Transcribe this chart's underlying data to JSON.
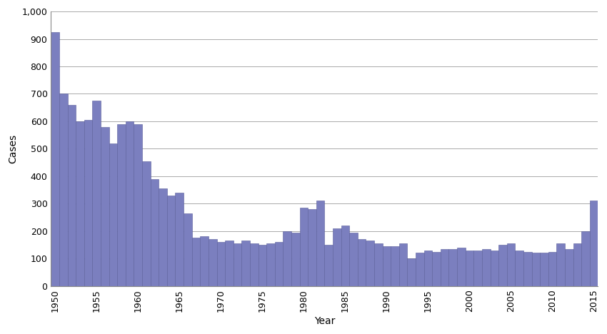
{
  "years": [
    1950,
    1951,
    1952,
    1953,
    1954,
    1955,
    1956,
    1957,
    1958,
    1959,
    1960,
    1961,
    1962,
    1963,
    1964,
    1965,
    1966,
    1967,
    1968,
    1969,
    1970,
    1971,
    1972,
    1973,
    1974,
    1975,
    1976,
    1977,
    1978,
    1979,
    1980,
    1981,
    1982,
    1983,
    1984,
    1985,
    1986,
    1987,
    1988,
    1989,
    1990,
    1991,
    1992,
    1993,
    1994,
    1995,
    1996,
    1997,
    1998,
    1999,
    2000,
    2001,
    2002,
    2003,
    2004,
    2005,
    2006,
    2007,
    2008,
    2009,
    2010,
    2011,
    2012,
    2013,
    2014,
    2015
  ],
  "cases": [
    925,
    700,
    660,
    600,
    605,
    675,
    580,
    520,
    590,
    600,
    590,
    455,
    390,
    355,
    330,
    340,
    265,
    175,
    180,
    170,
    160,
    165,
    155,
    165,
    155,
    150,
    155,
    160,
    200,
    195,
    285,
    280,
    310,
    150,
    210,
    220,
    195,
    170,
    165,
    155,
    145,
    145,
    155,
    100,
    120,
    130,
    125,
    135,
    135,
    140,
    130,
    130,
    135,
    130,
    150,
    155,
    130,
    125,
    120,
    120,
    125,
    155,
    135,
    155,
    200,
    310
  ],
  "bar_color": "#7B7FBF",
  "bar_edge_color": "#5a5e9a",
  "xlabel": "Year",
  "ylabel": "Cases",
  "ylim": [
    0,
    1000
  ],
  "yticks": [
    0,
    100,
    200,
    300,
    400,
    500,
    600,
    700,
    800,
    900,
    1000
  ],
  "xticks": [
    1950,
    1955,
    1960,
    1965,
    1970,
    1975,
    1980,
    1985,
    1990,
    1995,
    2000,
    2005,
    2010,
    2015
  ],
  "grid_color": "#aaaaaa",
  "background_color": "#ffffff",
  "label_fontsize": 10,
  "tick_fontsize": 9,
  "xlim_left": 1949.5,
  "xlim_right": 2015.5
}
